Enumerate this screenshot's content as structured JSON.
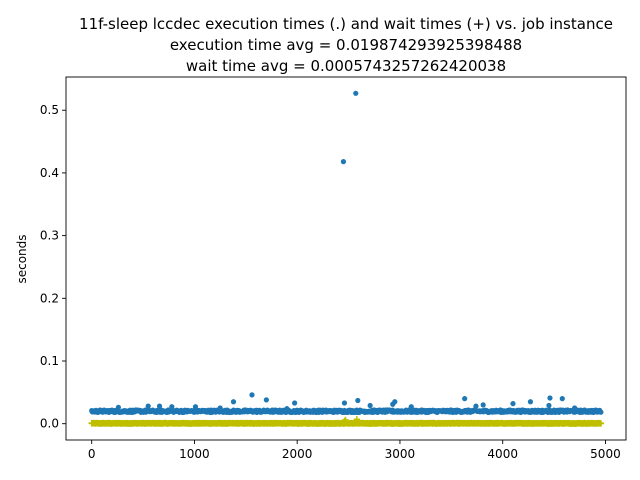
{
  "chart_data": {
    "type": "scatter",
    "title_lines": [
      "11f-sleep lccdec execution times (.) and wait times (+) vs. job instance",
      "execution time avg = 0.019874293925398488",
      "wait time avg = 0.0005743257262420038"
    ],
    "xlabel": "",
    "ylabel": "seconds",
    "xlim": [
      -250,
      5200
    ],
    "ylim": [
      -0.026,
      0.553
    ],
    "xticks": [
      0,
      1000,
      2000,
      3000,
      4000,
      5000
    ],
    "xtick_labels": [
      "0",
      "1000",
      "2000",
      "3000",
      "4000",
      "5000"
    ],
    "yticks": [
      0.0,
      0.1,
      0.2,
      0.3,
      0.4,
      0.5
    ],
    "ytick_labels": [
      "0.0",
      "0.1",
      "0.2",
      "0.3",
      "0.4",
      "0.5"
    ],
    "grid": false,
    "n_instances": 4960,
    "series": [
      {
        "marker": "dot",
        "color": "#1f77b4",
        "typical_value": 0.0199,
        "notable_points": [
          {
            "x": 2450,
            "y": 0.418
          },
          {
            "x": 2570,
            "y": 0.527
          },
          {
            "x": 1560,
            "y": 0.046
          },
          {
            "x": 1700,
            "y": 0.038
          },
          {
            "x": 1380,
            "y": 0.035
          },
          {
            "x": 1975,
            "y": 0.033
          },
          {
            "x": 2460,
            "y": 0.033
          },
          {
            "x": 2590,
            "y": 0.037
          },
          {
            "x": 2710,
            "y": 0.029
          },
          {
            "x": 2930,
            "y": 0.031
          },
          {
            "x": 2950,
            "y": 0.035
          },
          {
            "x": 3110,
            "y": 0.027
          },
          {
            "x": 3630,
            "y": 0.04
          },
          {
            "x": 3740,
            "y": 0.028
          },
          {
            "x": 3810,
            "y": 0.03
          },
          {
            "x": 4100,
            "y": 0.032
          },
          {
            "x": 4270,
            "y": 0.035
          },
          {
            "x": 4450,
            "y": 0.029
          },
          {
            "x": 4460,
            "y": 0.041
          },
          {
            "x": 4580,
            "y": 0.04
          },
          {
            "x": 4700,
            "y": 0.025
          },
          {
            "x": 550,
            "y": 0.028
          },
          {
            "x": 660,
            "y": 0.028
          },
          {
            "x": 780,
            "y": 0.027
          },
          {
            "x": 1010,
            "y": 0.027
          },
          {
            "x": 260,
            "y": 0.026
          },
          {
            "x": 1250,
            "y": 0.025
          },
          {
            "x": 1900,
            "y": 0.024
          }
        ]
      },
      {
        "marker": "plus",
        "color": "#bfbf00",
        "typical_value": 0.0006,
        "notable_points": [
          {
            "x": 2460,
            "y": 0.004
          },
          {
            "x": 2580,
            "y": 0.007
          },
          {
            "x": 2470,
            "y": 0.006
          }
        ]
      }
    ]
  }
}
